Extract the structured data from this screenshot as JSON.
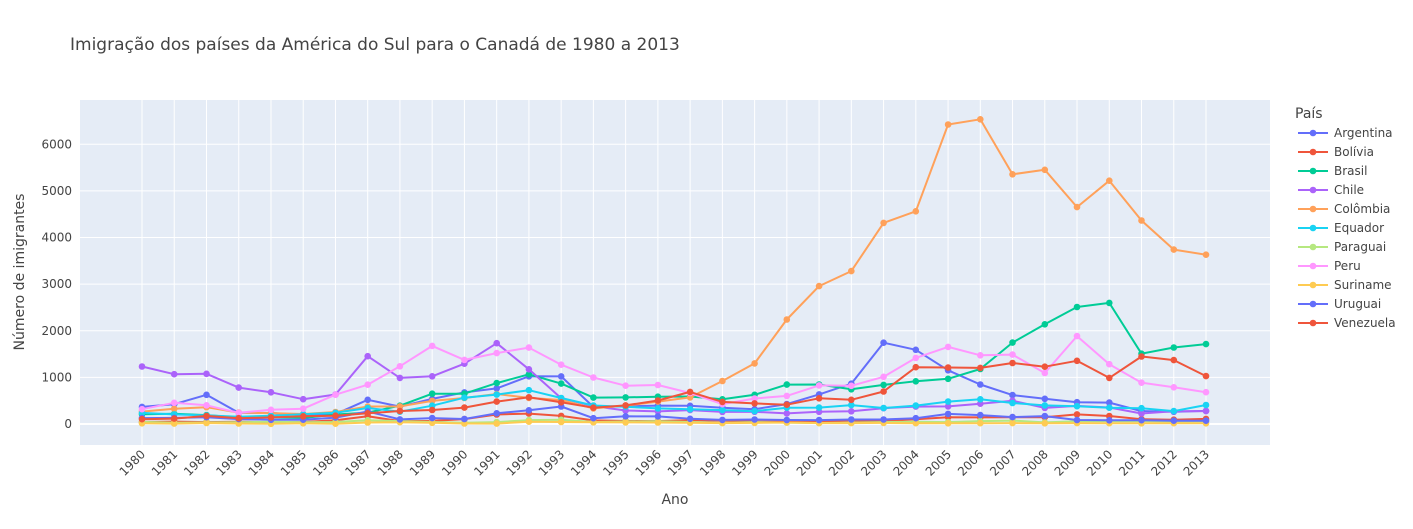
{
  "chart_data": {
    "type": "line",
    "title": "Imigração dos países da América do Sul para o Canadá de 1980 a 2013",
    "xlabel": "Ano",
    "ylabel": "Número de imigrantes",
    "legend_title": "País",
    "legend_position": "right",
    "grid": true,
    "ylim": [
      -450,
      6950
    ],
    "y_ticks": [
      0,
      1000,
      2000,
      3000,
      4000,
      5000,
      6000
    ],
    "categories": [
      "1980",
      "1981",
      "1982",
      "1983",
      "1984",
      "1985",
      "1986",
      "1987",
      "1988",
      "1989",
      "1990",
      "1991",
      "1992",
      "1993",
      "1994",
      "1995",
      "1996",
      "1997",
      "1998",
      "1999",
      "2000",
      "2001",
      "2002",
      "2003",
      "2004",
      "2005",
      "2006",
      "2007",
      "2008",
      "2009",
      "2010",
      "2011",
      "2012",
      "2013"
    ],
    "series": [
      {
        "name": "Argentina",
        "color": "#636efa",
        "values": [
          368,
          426,
          626,
          241,
          237,
          196,
          213,
          519,
          374,
          538,
          678,
          763,
          1023,
          1022,
          366,
          380,
          396,
          391,
          349,
          318,
          427,
          635,
          865,
          1745,
          1591,
          1153,
          847,
          620,
          540,
          467,
          459,
          278,
          263,
          282
        ]
      },
      {
        "name": "Bolívia",
        "color": "#EF553B",
        "values": [
          44,
          52,
          42,
          49,
          38,
          44,
          79,
          165,
          63,
          68,
          105,
          205,
          223,
          175,
          78,
          64,
          62,
          84,
          74,
          52,
          55,
          51,
          74,
          63,
          103,
          146,
          143,
          146,
          147,
          206,
          173,
          104,
          92,
          109
        ]
      },
      {
        "name": "Brasil",
        "color": "#00cc96",
        "values": [
          211,
          220,
          192,
          139,
          145,
          130,
          205,
          244,
          394,
          650,
          650,
          877,
          1066,
          866,
          566,
          572,
          586,
          591,
          531,
          626,
          845,
          847,
          745,
          839,
          917,
          969,
          1181,
          1746,
          2138,
          2509,
          2598,
          1508,
          1642,
          1714
        ]
      },
      {
        "name": "Chile",
        "color": "#ab63fa",
        "values": [
          1233,
          1069,
          1078,
          781,
          681,
          533,
          633,
          1454,
          990,
          1023,
          1294,
          1733,
          1174,
          554,
          385,
          289,
          271,
          298,
          260,
          262,
          228,
          263,
          272,
          340,
          374,
          378,
          436,
          500,
          346,
          389,
          355,
          226,
          272,
          278
        ]
      },
      {
        "name": "Colômbia",
        "color": "#FFA15A",
        "values": [
          266,
          326,
          360,
          244,
          235,
          214,
          257,
          376,
          378,
          496,
          558,
          643,
          560,
          515,
          335,
          396,
          480,
          572,
          923,
          1300,
          2241,
          2958,
          3280,
          4314,
          4563,
          6424,
          6535,
          5357,
          5452,
          4652,
          5218,
          4366,
          3741,
          3631
        ]
      },
      {
        "name": "Equador",
        "color": "#19d3f3",
        "values": [
          238,
          207,
          184,
          155,
          179,
          208,
          240,
          344,
          265,
          394,
          564,
          632,
          725,
          559,
          397,
          371,
          336,
          315,
          298,
          276,
          351,
          352,
          406,
          344,
          395,
          481,
          531,
          451,
          399,
          383,
          350,
          339,
          278,
          409
        ]
      },
      {
        "name": "Paraguai",
        "color": "#B6E880",
        "values": [
          45,
          26,
          32,
          40,
          48,
          36,
          43,
          81,
          62,
          44,
          27,
          42,
          85,
          90,
          43,
          55,
          59,
          44,
          25,
          42,
          30,
          22,
          30,
          42,
          49,
          42,
          62,
          73,
          35,
          60,
          59,
          58,
          55,
          58
        ]
      },
      {
        "name": "Peru",
        "color": "#FF97FF",
        "values": [
          317,
          456,
          401,
          241,
          306,
          328,
          628,
          843,
          1237,
          1675,
          1375,
          1521,
          1639,
          1272,
          998,
          823,
          838,
          665,
          425,
          547,
          604,
          828,
          820,
          1012,
          1419,
          1655,
          1473,
          1490,
          1094,
          1886,
          1283,
          886,
          787,
          682
        ]
      },
      {
        "name": "Suriname",
        "color": "#FECB52",
        "values": [
          15,
          10,
          21,
          12,
          5,
          16,
          7,
          32,
          38,
          27,
          11,
          9,
          49,
          43,
          37,
          35,
          32,
          29,
          20,
          23,
          32,
          20,
          20,
          24,
          18,
          15,
          18,
          20,
          16,
          20,
          17,
          16,
          18,
          15
        ]
      },
      {
        "name": "Uruguai",
        "color": "#636efa",
        "values": [
          128,
          132,
          146,
          105,
          90,
          92,
          137,
          269,
          99,
          128,
          107,
          230,
          295,
          375,
          124,
          166,
          163,
          113,
          88,
          96,
          87,
          85,
          98,
          96,
          125,
          216,
          191,
          149,
          169,
          87,
          79,
          83,
          71,
          72
        ]
      },
      {
        "name": "Venezuela",
        "color": "#EF553B",
        "values": [
          103,
          117,
          174,
          124,
          142,
          165,
          179,
          229,
          279,
          301,
          352,
          480,
          574,
          466,
          349,
          399,
          504,
          690,
          474,
          442,
          414,
          552,
          520,
          697,
          1219,
          1212,
          1203,
          1309,
          1230,
          1356,
          989,
          1448,
          1371,
          1027
        ]
      }
    ]
  }
}
